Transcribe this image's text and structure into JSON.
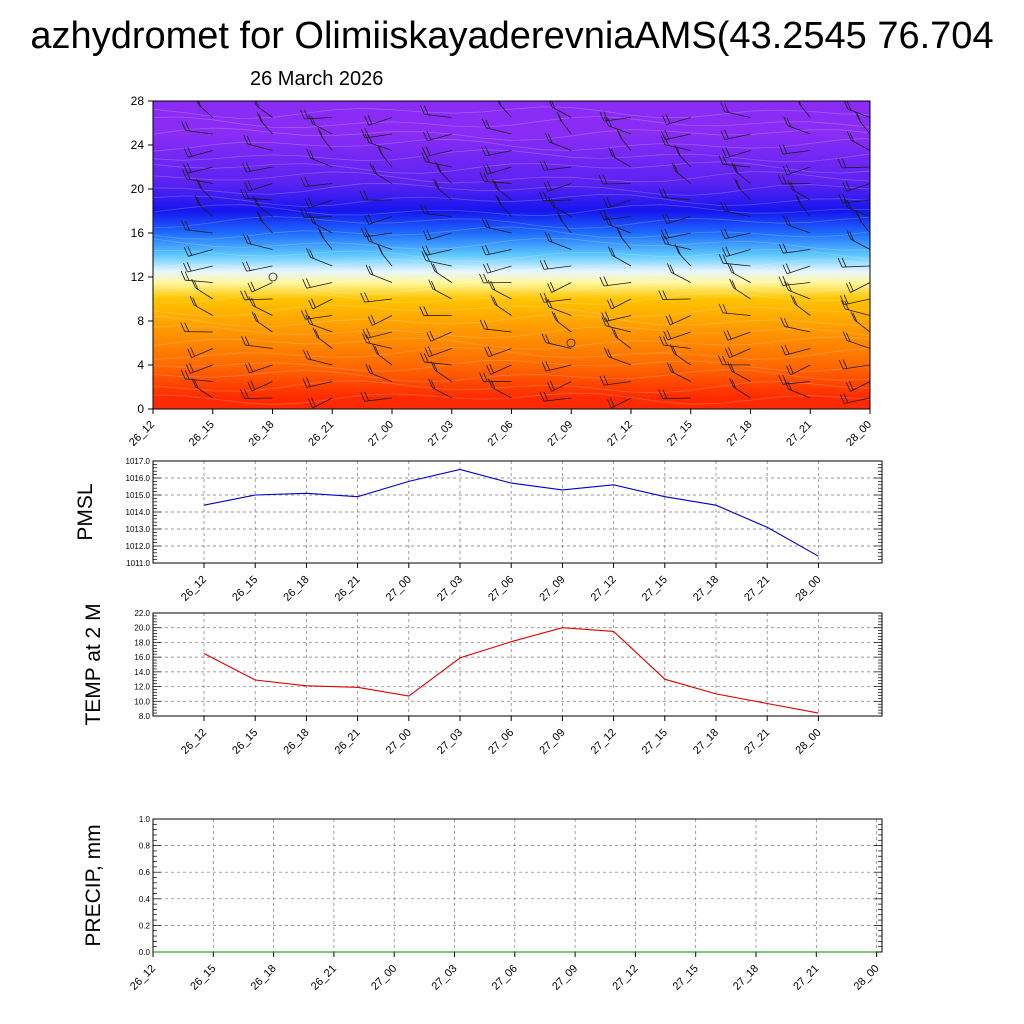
{
  "title": "azhydromet for OlimiiskayaderevniaAMS(43.2545 76.704",
  "subtitle": "26 March 2026",
  "time_labels": [
    "26_12",
    "26_15",
    "26_18",
    "26_21",
    "27_00",
    "27_03",
    "27_06",
    "27_09",
    "27_12",
    "27_15",
    "27_18",
    "27_21",
    "28_00"
  ],
  "chart_data": [
    {
      "type": "heatmap",
      "id": "cross-section",
      "title": "",
      "xlabel": "",
      "ylabel": "",
      "x": [
        "26_12",
        "26_15",
        "26_18",
        "26_21",
        "27_00",
        "27_03",
        "27_06",
        "27_09",
        "27_12",
        "27_15",
        "27_18",
        "27_21",
        "28_00"
      ],
      "yticks": [
        0,
        4,
        8,
        12,
        16,
        20,
        24,
        28
      ],
      "ylim": [
        0,
        28
      ],
      "color_bands": [
        {
          "from": 0,
          "to": 2,
          "color": "#ff2a00"
        },
        {
          "from": 2,
          "to": 6,
          "color": "#ff6a00"
        },
        {
          "from": 6,
          "to": 9,
          "color": "#ff9e00"
        },
        {
          "from": 9,
          "to": 11,
          "color": "#ffc400"
        },
        {
          "from": 11,
          "to": 12,
          "color": "#fff7a0"
        },
        {
          "from": 12,
          "to": 13,
          "color": "#e8f6ff"
        },
        {
          "from": 13,
          "to": 15,
          "color": "#5cc8ff"
        },
        {
          "from": 15,
          "to": 17,
          "color": "#1e6bff"
        },
        {
          "from": 17,
          "to": 19,
          "color": "#1515ee"
        },
        {
          "from": 19,
          "to": 22,
          "color": "#5a22f2"
        },
        {
          "from": 22,
          "to": 28,
          "color": "#8a2cf6"
        }
      ],
      "wind_barbs": true,
      "grid": false
    },
    {
      "type": "line",
      "id": "pmsl",
      "ylabel": "PMSL",
      "x": [
        "26_12",
        "26_15",
        "26_18",
        "26_21",
        "27_00",
        "27_03",
        "27_06",
        "27_09",
        "27_12",
        "27_15",
        "27_18",
        "27_21",
        "28_00"
      ],
      "series": [
        {
          "color": "#0000cc",
          "values": [
            1014.4,
            1015.0,
            1015.1,
            1014.9,
            1015.8,
            1016.5,
            1015.7,
            1015.3,
            1015.6,
            1014.9,
            1014.4,
            1013.1,
            1011.4
          ]
        }
      ],
      "ylim": [
        1011.0,
        1017.0
      ],
      "yticks": [
        "1011.0",
        "1012.0",
        "1013.0",
        "1014.0",
        "1015.0",
        "1016.0",
        "1017.0"
      ],
      "grid": true
    },
    {
      "type": "line",
      "id": "temp",
      "ylabel": "TEMP at 2 M",
      "x": [
        "26_12",
        "26_15",
        "26_18",
        "26_21",
        "27_00",
        "27_03",
        "27_06",
        "27_09",
        "27_12",
        "27_15",
        "27_18",
        "27_21",
        "28_00"
      ],
      "series": [
        {
          "color": "#dd0000",
          "values": [
            16.5,
            12.9,
            12.1,
            11.9,
            10.7,
            15.9,
            18.1,
            20.0,
            19.5,
            13.0,
            11.0,
            9.7,
            8.4
          ]
        }
      ],
      "ylim": [
        8.0,
        22.0
      ],
      "yticks": [
        "8.0",
        "10.0",
        "12.0",
        "14.0",
        "16.0",
        "18.0",
        "20.0",
        "22.0"
      ],
      "grid": true
    },
    {
      "type": "line",
      "id": "precip",
      "ylabel": "PRECIP, mm",
      "x": [
        "26_12",
        "26_15",
        "26_18",
        "26_21",
        "27_00",
        "27_03",
        "27_06",
        "27_09",
        "27_12",
        "27_15",
        "27_18",
        "27_21",
        "28_00"
      ],
      "series": [
        {
          "color": "#008800",
          "values": [
            0,
            0,
            0,
            0,
            0,
            0,
            0,
            0,
            0,
            0,
            0,
            0,
            0
          ]
        }
      ],
      "ylim": [
        0.0,
        1.0
      ],
      "yticks": [
        "0.0",
        "0.2",
        "0.4",
        "0.6",
        "0.8",
        "1.0"
      ],
      "grid": true
    }
  ]
}
